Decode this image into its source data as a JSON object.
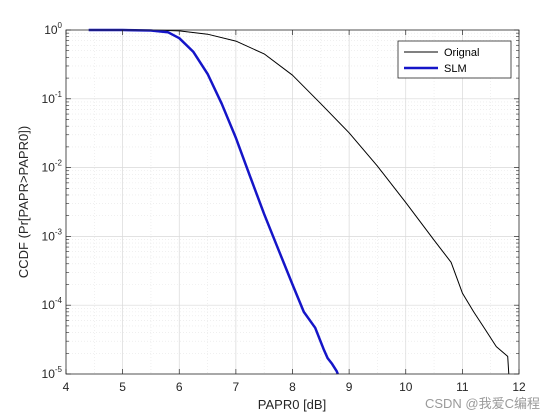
{
  "chart_data": {
    "type": "line",
    "xlabel": "PAPR0 [dB]",
    "ylabel": "CCDF (Pr[PAPR>PAPR0])",
    "xlim": [
      4,
      12
    ],
    "ylim": [
      1e-05,
      1
    ],
    "yscale": "log",
    "xticks": [
      "4",
      "5",
      "6",
      "7",
      "8",
      "9",
      "10",
      "11",
      "12"
    ],
    "yticks": [
      {
        "base": "10",
        "exp": "0",
        "value": 1
      },
      {
        "base": "10",
        "exp": "-1",
        "value": 0.1
      },
      {
        "base": "10",
        "exp": "-2",
        "value": 0.01
      },
      {
        "base": "10",
        "exp": "-3",
        "value": 0.001
      },
      {
        "base": "10",
        "exp": "-4",
        "value": 0.0001
      },
      {
        "base": "10",
        "exp": "-5",
        "value": 1e-05
      }
    ],
    "grid": true,
    "legend_position": "top-right",
    "series": [
      {
        "name": "Orignal",
        "color": "#000000",
        "x": [
          4.4,
          5.0,
          5.5,
          6.0,
          6.5,
          7.0,
          7.5,
          8.0,
          8.5,
          9.0,
          9.5,
          10.0,
          10.5,
          10.8,
          11.0,
          11.2,
          11.4,
          11.6,
          11.8,
          11.82
        ],
        "y": [
          1,
          1,
          0.999,
          0.97,
          0.87,
          0.69,
          0.45,
          0.22,
          0.085,
          0.032,
          0.0105,
          0.0031,
          0.00088,
          0.00042,
          0.00015,
          8e-05,
          4.5e-05,
          2.5e-05,
          1.8e-05,
          1e-05
        ]
      },
      {
        "name": "SLM",
        "color": "#1515c8",
        "x": [
          4.4,
          5.0,
          5.5,
          5.8,
          6.0,
          6.25,
          6.5,
          6.75,
          7.0,
          7.25,
          7.5,
          7.75,
          8.0,
          8.2,
          8.4,
          8.55,
          8.62,
          8.7,
          8.78,
          8.8
        ],
        "y": [
          1,
          1,
          0.985,
          0.93,
          0.76,
          0.48,
          0.23,
          0.085,
          0.027,
          0.0075,
          0.0021,
          0.00065,
          0.0002,
          8e-05,
          4.7e-05,
          2.3e-05,
          1.7e-05,
          1.4e-05,
          1.1e-05,
          1e-05
        ]
      }
    ]
  },
  "watermark": "CSDN @我爱C编程"
}
